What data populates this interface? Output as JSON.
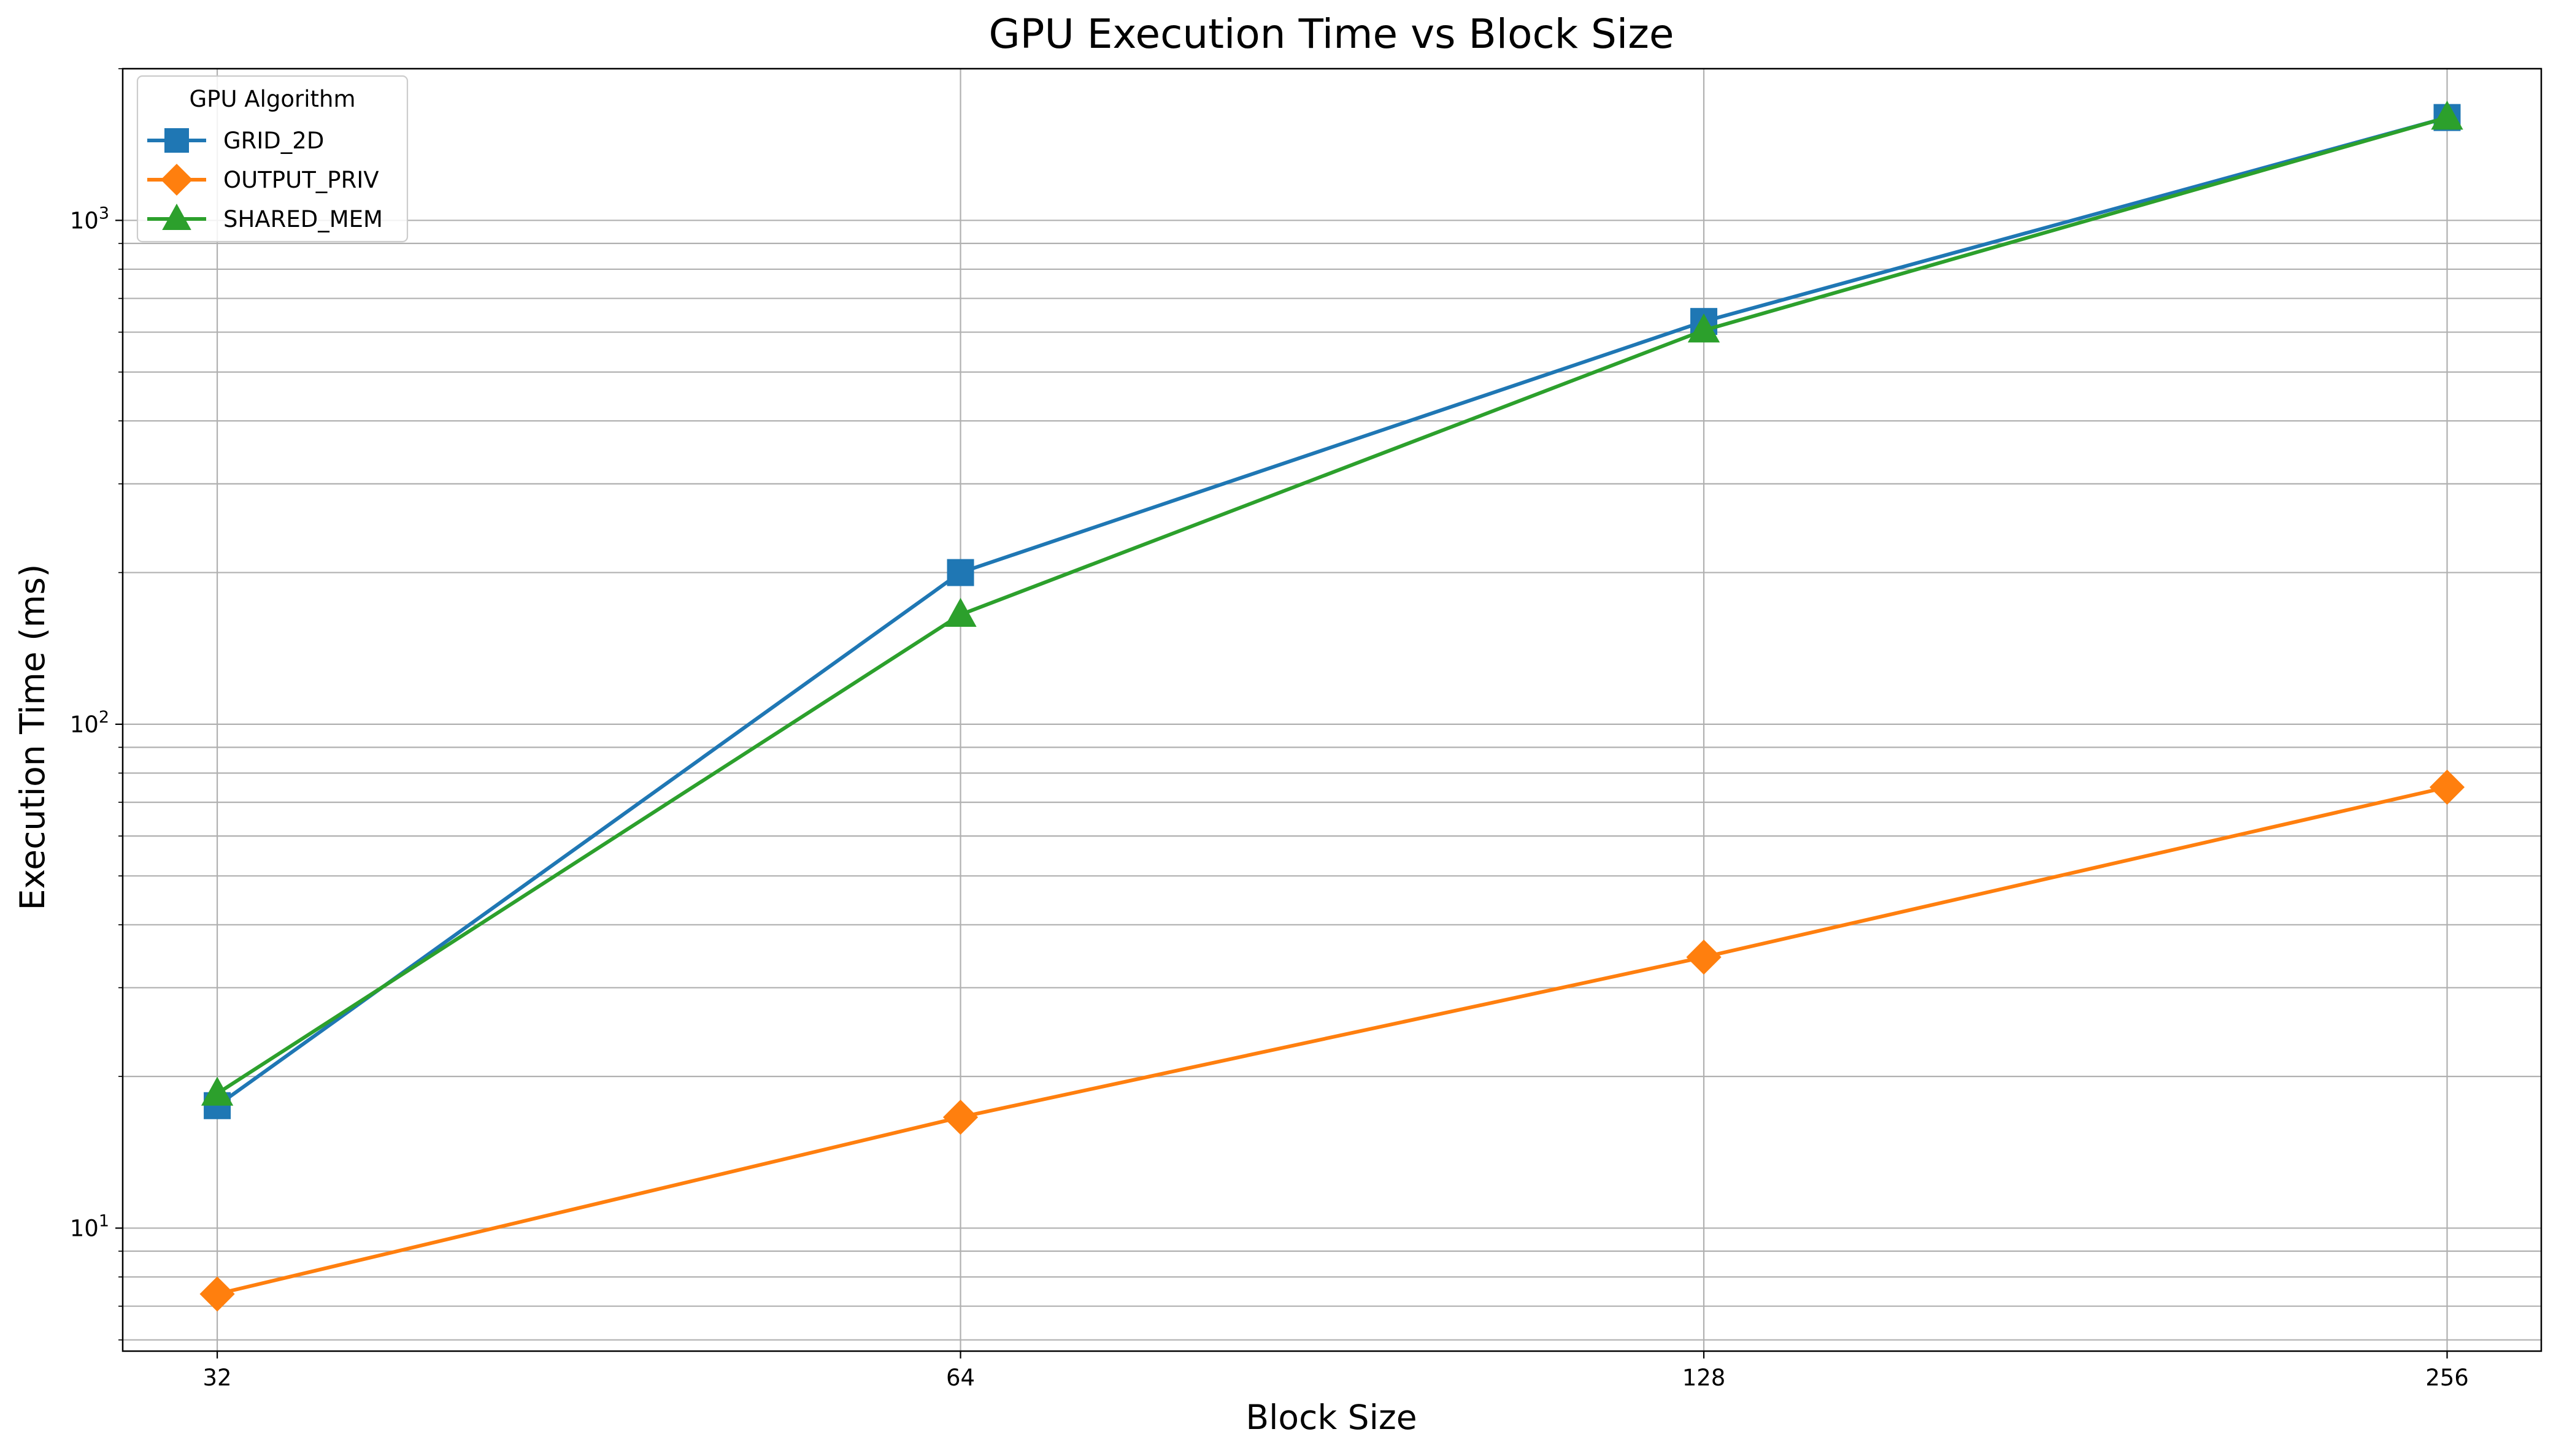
{
  "chart_data": {
    "type": "line",
    "title": "GPU Execution Time vs Block Size",
    "xlabel": "Block Size",
    "ylabel": "Execution Time (ms)",
    "x_scale": "log2",
    "y_scale": "log",
    "x": [
      32,
      64,
      128,
      256
    ],
    "x_tick_labels": [
      "32",
      "64",
      "128",
      "256"
    ],
    "y_ticks": [
      {
        "value": 10,
        "base": "10",
        "exp": "1"
      },
      {
        "value": 100,
        "base": "10",
        "exp": "2"
      },
      {
        "value": 1000,
        "base": "10",
        "exp": "3"
      }
    ],
    "xlim": [
      29.3,
      279.5
    ],
    "ylim": [
      5.7,
      2000
    ],
    "grid": "on (major and minor)",
    "legend": {
      "title": "GPU Algorithm",
      "placement": "top-left"
    },
    "series": [
      {
        "name": "GRID_2D",
        "color": "#1f77b4",
        "marker": "square",
        "values": [
          17.5,
          200,
          630,
          1600
        ]
      },
      {
        "name": "OUTPUT_PRIV",
        "color": "#ff7f0e",
        "marker": "diamond",
        "values": [
          7.4,
          16.6,
          34.5,
          75
        ]
      },
      {
        "name": "SHARED_MEM",
        "color": "#2ca02c",
        "marker": "triangle",
        "values": [
          18.5,
          165,
          605,
          1600
        ]
      }
    ]
  }
}
